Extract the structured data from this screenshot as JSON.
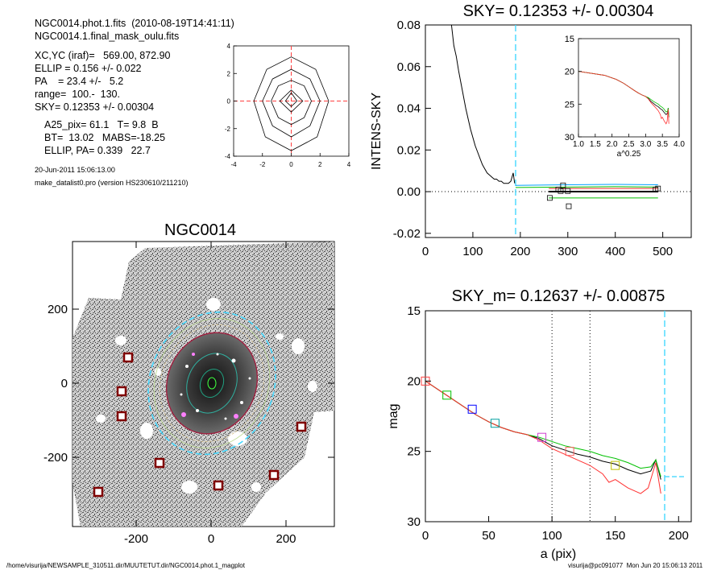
{
  "header": {
    "file_line": "NGC0014.phot.1.fits  (2010-08-19T14:41:11)",
    "mask_line": "NGC0014.1.final_mask_oulu.fits",
    "xc_line": "XC,YC (iraf)=   569.00, 872.90",
    "ellip_line": "ELLIP = 0.156 +/- 0.022",
    "pa_line": "PA    = 23.4 +/-   5.2",
    "range_line": "range=  100.-  130.",
    "sky_line": "SKY= 0.12353 +/- 0.00304",
    "a25_line": "A25_pix= 61.1   T= 9.8  B",
    "bt_line": "BT=  13.02   MABS=-18.25",
    "ellip_pa_line": "ELLIP, PA= 0.339   22.7",
    "date_line": "20-Jun-2011 15:06:13.00",
    "program_line": "make_datalist0.pro (version HS230610/211210)"
  },
  "footer": {
    "path": "/home/visurija/NEWSAMPLE_310511.dir/MUUTETUT.dir/NGC0014.phot.1_magplot",
    "user_time": "visurija@pc091077  Mon Jun 20 15:06:13 2011"
  },
  "image_panel": {
    "title": "NGC0014",
    "xticks": [
      "-200",
      "0",
      "200"
    ],
    "yticks": [
      "200",
      "0",
      "-200"
    ]
  },
  "chart_data": [
    {
      "id": "contour",
      "type": "line",
      "title": "",
      "xlim": [
        -4,
        4
      ],
      "ylim": [
        -4,
        4
      ],
      "xticks": [
        "-4",
        "-2",
        "0",
        "2",
        "4"
      ],
      "yticks": [
        "4",
        "2",
        "0",
        "-2",
        "-4"
      ],
      "contours": [
        [
          [
            -2.6,
            0
          ],
          [
            -1.7,
            2.3
          ],
          [
            0,
            3.2
          ],
          [
            1.7,
            2.3
          ],
          [
            2.6,
            0
          ],
          [
            1.8,
            -2.6
          ],
          [
            0,
            -3.6
          ],
          [
            -1.8,
            -2.6
          ],
          [
            -2.6,
            0
          ]
        ],
        [
          [
            -2.0,
            0
          ],
          [
            -1.3,
            1.6
          ],
          [
            0,
            2.3
          ],
          [
            1.3,
            1.6
          ],
          [
            2.0,
            0
          ],
          [
            1.3,
            -1.8
          ],
          [
            0,
            -2.6
          ],
          [
            -1.3,
            -1.8
          ],
          [
            -2.0,
            0
          ]
        ],
        [
          [
            -1.4,
            0
          ],
          [
            -0.9,
            1.1
          ],
          [
            0,
            1.5
          ],
          [
            0.9,
            1.1
          ],
          [
            1.4,
            0
          ],
          [
            0.9,
            -1.2
          ],
          [
            0,
            -1.7
          ],
          [
            -0.9,
            -1.2
          ],
          [
            -1.4,
            0
          ]
        ],
        [
          [
            -0.8,
            0
          ],
          [
            0,
            0.8
          ],
          [
            0.8,
            0
          ],
          [
            0,
            -0.8
          ],
          [
            -0.8,
            0
          ]
        ],
        [
          [
            -0.4,
            0
          ],
          [
            0,
            0.6
          ],
          [
            0.4,
            0
          ],
          [
            0,
            -0.4
          ],
          [
            -0.4,
            0
          ]
        ]
      ]
    },
    {
      "id": "intens",
      "type": "line",
      "title": "SKY= 0.12353 +/- 0.00304",
      "ylabel": "INTENS-SKY",
      "xlabel": "",
      "xlim": [
        0,
        560
      ],
      "ylim": [
        -0.022,
        0.08
      ],
      "xticks": [
        "0",
        "100",
        "200",
        "300",
        "400",
        "500"
      ],
      "yticks": [
        "0.08",
        "0.06",
        "0.04",
        "0.02",
        "0.00",
        "-0.02"
      ],
      "sky_radius": 190,
      "series": [
        {
          "color": "#000000",
          "points": [
            [
              55,
              0.08
            ],
            [
              60,
              0.07
            ],
            [
              65,
              0.065
            ],
            [
              70,
              0.058
            ],
            [
              75,
              0.052
            ],
            [
              80,
              0.046
            ],
            [
              85,
              0.04
            ],
            [
              90,
              0.035
            ],
            [
              95,
              0.03
            ],
            [
              100,
              0.026
            ],
            [
              105,
              0.022
            ],
            [
              110,
              0.019
            ],
            [
              115,
              0.016
            ],
            [
              120,
              0.013
            ],
            [
              125,
              0.011
            ],
            [
              130,
              0.009
            ],
            [
              135,
              0.008
            ],
            [
              140,
              0.007
            ],
            [
              145,
              0.006
            ],
            [
              150,
              0.006
            ],
            [
              155,
              0.005
            ],
            [
              160,
              0.005
            ],
            [
              165,
              0.004
            ],
            [
              170,
              0.004
            ],
            [
              175,
              0.004
            ],
            [
              180,
              0.005
            ],
            [
              185,
              0.009
            ],
            [
              188,
              0.004
            ]
          ]
        },
        {
          "color": "#00a0ff",
          "points": [
            [
              190,
              0.003
            ],
            [
              300,
              0.0033
            ],
            [
              400,
              0.0035
            ],
            [
              490,
              0.0033
            ]
          ]
        },
        {
          "color": "#00c000",
          "points": [
            [
              190,
              0.002
            ],
            [
              300,
              0.0022
            ],
            [
              400,
              0.0024
            ],
            [
              490,
              0.0022
            ]
          ]
        },
        {
          "color": "#ff3030",
          "points": [
            [
              260,
              0.0015
            ],
            [
              400,
              0.0015
            ],
            [
              490,
              0.0015
            ]
          ]
        },
        {
          "color": "#000000",
          "points": [
            [
              260,
              0.0
            ],
            [
              490,
              0.0
            ]
          ]
        },
        {
          "color": "#00c000",
          "points": [
            [
              260,
              -0.003
            ],
            [
              490,
              -0.003
            ]
          ]
        }
      ],
      "markers": [
        [
          262,
          -0.003
        ],
        [
          280,
          0.001
        ],
        [
          285,
          0.0003
        ],
        [
          290,
          0.003
        ],
        [
          300,
          0.0003
        ],
        [
          302,
          -0.007
        ],
        [
          485,
          0.001
        ],
        [
          490,
          0.0015
        ]
      ],
      "inset": {
        "xlim": [
          1.0,
          4.0
        ],
        "ylim": [
          15,
          30
        ],
        "xlabel": "a^0.25",
        "xticks": [
          "1.0",
          "1.5",
          "2.0",
          "2.5",
          "3.0",
          "3.5",
          "4.0"
        ],
        "yticks": [
          "15",
          "20",
          "25",
          "30"
        ]
      }
    },
    {
      "id": "mag",
      "type": "line",
      "title": "SKY_m=  0.12637 +/- 0.00875",
      "xlabel": "a (pix)",
      "ylabel": "mag",
      "xlim": [
        0,
        210
      ],
      "ylim": [
        15,
        30
      ],
      "xticks": [
        "0",
        "50",
        "100",
        "150",
        "200"
      ],
      "yticks": [
        "15",
        "20",
        "25",
        "30"
      ],
      "range_lines": [
        100,
        130
      ],
      "sky_radius": 189,
      "sky_level": 26.8,
      "series": [
        {
          "color": "#000000",
          "points": [
            [
              0,
              20.0
            ],
            [
              10,
              20.6
            ],
            [
              20,
              21.2
            ],
            [
              30,
              21.8
            ],
            [
              40,
              22.4
            ],
            [
              50,
              22.9
            ],
            [
              60,
              23.3
            ],
            [
              70,
              23.6
            ],
            [
              80,
              23.8
            ],
            [
              90,
              24.1
            ],
            [
              100,
              24.6
            ],
            [
              110,
              24.9
            ],
            [
              120,
              25.2
            ],
            [
              130,
              25.4
            ],
            [
              140,
              25.7
            ],
            [
              150,
              25.9
            ],
            [
              160,
              26.3
            ],
            [
              170,
              26.6
            ],
            [
              178,
              26.4
            ],
            [
              182,
              25.6
            ],
            [
              186,
              27.0
            ]
          ]
        },
        {
          "color": "#00c000",
          "points": [
            [
              0,
              20.0
            ],
            [
              10,
              20.6
            ],
            [
              20,
              21.2
            ],
            [
              30,
              21.8
            ],
            [
              40,
              22.4
            ],
            [
              50,
              22.9
            ],
            [
              60,
              23.3
            ],
            [
              70,
              23.6
            ],
            [
              80,
              23.8
            ],
            [
              90,
              24.0
            ],
            [
              100,
              24.3
            ],
            [
              110,
              24.6
            ],
            [
              120,
              24.8
            ],
            [
              130,
              25.0
            ],
            [
              140,
              25.3
            ],
            [
              150,
              25.5
            ],
            [
              160,
              25.8
            ],
            [
              170,
              26.2
            ],
            [
              178,
              26.1
            ],
            [
              182,
              25.6
            ],
            [
              186,
              26.8
            ]
          ]
        },
        {
          "color": "#ff3030",
          "points": [
            [
              0,
              20.0
            ],
            [
              10,
              20.6
            ],
            [
              20,
              21.2
            ],
            [
              30,
              21.8
            ],
            [
              40,
              22.4
            ],
            [
              50,
              22.9
            ],
            [
              60,
              23.3
            ],
            [
              70,
              23.6
            ],
            [
              80,
              23.8
            ],
            [
              90,
              24.2
            ],
            [
              100,
              24.8
            ],
            [
              110,
              25.2
            ],
            [
              120,
              25.6
            ],
            [
              130,
              26.0
            ],
            [
              140,
              26.6
            ],
            [
              145,
              27.2
            ],
            [
              150,
              27.0
            ],
            [
              160,
              27.6
            ],
            [
              170,
              28.0
            ],
            [
              176,
              27.6
            ],
            [
              182,
              25.8
            ],
            [
              186,
              28.0
            ]
          ]
        }
      ],
      "markers": [
        {
          "x": 0,
          "y": 20.0,
          "color": "#ff4040"
        },
        {
          "x": 17,
          "y": 21.0,
          "color": "#00c000"
        },
        {
          "x": 37,
          "y": 22.0,
          "color": "#0000ff"
        },
        {
          "x": 55,
          "y": 23.0,
          "color": "#00a0a0"
        },
        {
          "x": 92,
          "y": 24.0,
          "color": "#d040d0"
        },
        {
          "x": 114,
          "y": 25.0,
          "color": "#ff6060"
        },
        {
          "x": 150,
          "y": 26.0,
          "color": "#c0c000"
        }
      ]
    }
  ]
}
